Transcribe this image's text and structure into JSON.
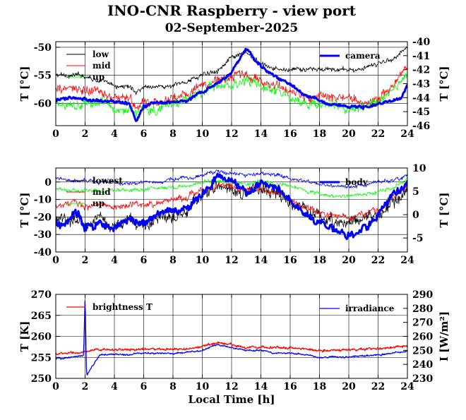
{
  "title": "INO-CNR Raspberry - view port",
  "subtitle": "02-September-2025",
  "chart_data": [
    {
      "type": "line",
      "xlim": [
        0,
        24
      ],
      "xticks": [
        "0",
        "2",
        "4",
        "6",
        "8",
        "10",
        "12",
        "14",
        "16",
        "18",
        "20",
        "22",
        "24"
      ],
      "ylabel": "T [°C]",
      "ylim": [
        -64,
        -49
      ],
      "yticks": [
        "-50",
        "-55",
        "-60"
      ],
      "y2label": "T [°C]",
      "y2lim": [
        -46,
        -40
      ],
      "y2ticks": [
        "-40",
        "-41",
        "-42",
        "-43",
        "-44",
        "-45",
        "-46"
      ],
      "grid": true,
      "legend_left": "top-left",
      "legend_right": "top-right",
      "series": [
        {
          "name": "low",
          "axis": "left",
          "color": "#000000",
          "width": 0.8,
          "noise": 0.6,
          "x": [
            0,
            1,
            2,
            3,
            4,
            5,
            5.5,
            6,
            7,
            8,
            9,
            10,
            11,
            12,
            13,
            14,
            15,
            16,
            17,
            18,
            19,
            20,
            21,
            22,
            23,
            24
          ],
          "y": [
            -55,
            -55,
            -55,
            -56,
            -57,
            -57,
            -58,
            -57,
            -57,
            -57,
            -56,
            -55,
            -54,
            -52,
            -51,
            -53,
            -54,
            -54,
            -54,
            -54,
            -54,
            -54,
            -54,
            -53,
            -52,
            -50
          ]
        },
        {
          "name": "mid",
          "axis": "left",
          "color": "#ff0000",
          "width": 0.8,
          "noise": 1.2,
          "x": [
            0,
            1,
            2,
            3,
            4,
            5,
            5.5,
            6,
            7,
            8,
            9,
            10,
            11,
            12,
            13,
            14,
            15,
            16,
            17,
            18,
            19,
            20,
            21,
            22,
            23,
            24
          ],
          "y": [
            -58,
            -57,
            -58,
            -58,
            -59,
            -59,
            -61,
            -60,
            -60,
            -59,
            -58,
            -57,
            -56,
            -55,
            -55,
            -56,
            -57,
            -58,
            -59,
            -59,
            -59,
            -59,
            -60,
            -59,
            -57,
            -53
          ]
        },
        {
          "name": "up",
          "axis": "left",
          "color": "#00ff00",
          "width": 0.8,
          "noise": 1.2,
          "x": [
            0,
            1,
            2,
            3,
            4,
            5,
            5.5,
            6,
            7,
            8,
            9,
            10,
            11,
            12,
            13,
            14,
            15,
            16,
            17,
            18,
            19,
            20,
            21,
            22,
            23,
            24
          ],
          "y": [
            -60,
            -60,
            -60,
            -60,
            -61,
            -61,
            -62,
            -61,
            -61,
            -60,
            -59,
            -58,
            -57,
            -57,
            -56,
            -57,
            -58,
            -59,
            -60,
            -60,
            -60,
            -61,
            -61,
            -60,
            -58,
            -55
          ]
        },
        {
          "name": "camera",
          "axis": "right",
          "color": "#0000ff",
          "width": 3,
          "noise": 0.15,
          "x": [
            0,
            1,
            2,
            3,
            4,
            5,
            5.5,
            6,
            7,
            8,
            9,
            10,
            11,
            12,
            13,
            13.5,
            14,
            15,
            16,
            17,
            18,
            19,
            20,
            21,
            22,
            23,
            23.6,
            24
          ],
          "y": [
            -44.2,
            -44,
            -44.1,
            -44.2,
            -44.3,
            -44.4,
            -45.7,
            -44.6,
            -44.4,
            -44.3,
            -44.2,
            -43.6,
            -43,
            -42.2,
            -40.5,
            -41.2,
            -41.8,
            -42.5,
            -43,
            -43.8,
            -44.2,
            -44.5,
            -44.6,
            -44.7,
            -44.5,
            -44.2,
            -44,
            -43.2
          ]
        }
      ]
    },
    {
      "type": "line",
      "xlim": [
        0,
        24
      ],
      "xticks": [
        "0",
        "2",
        "4",
        "6",
        "8",
        "10",
        "12",
        "14",
        "16",
        "18",
        "20",
        "22",
        "24"
      ],
      "ylabel": "T [°C]",
      "ylim": [
        -40,
        8
      ],
      "yticks": [
        "0",
        "-10",
        "-20",
        "-30",
        "-40"
      ],
      "y2label": "T [°C]",
      "y2lim": [
        -8,
        10
      ],
      "y2ticks": [
        "10",
        "5",
        "0",
        "-5"
      ],
      "grid": true,
      "legend_left": "top-left",
      "legend_right": "top-right",
      "series": [
        {
          "name": "lowest",
          "axis": "left",
          "color": "#000000",
          "width": 0.8,
          "noise": 5,
          "x": [
            0,
            1,
            2,
            3,
            4,
            5,
            6,
            7,
            8,
            9,
            10,
            11,
            12,
            13,
            14,
            15,
            16,
            17,
            18,
            19,
            20,
            21,
            22,
            23,
            24
          ],
          "y": [
            -23,
            -22,
            -24,
            -22,
            -25,
            -22,
            -24,
            -22,
            -18,
            -15,
            -8,
            -3,
            -4,
            -6,
            -4,
            -6,
            -12,
            -16,
            -20,
            -22,
            -23,
            -20,
            -20,
            -12,
            -6
          ]
        },
        {
          "name": "mid",
          "axis": "left",
          "color": "#ff0000",
          "width": 0.8,
          "noise": 2.5,
          "x": [
            0,
            1,
            2,
            3,
            4,
            5,
            6,
            7,
            8,
            9,
            10,
            11,
            12,
            13,
            14,
            15,
            16,
            17,
            18,
            19,
            20,
            21,
            22,
            23,
            24
          ],
          "y": [
            -13,
            -12,
            -14,
            -13,
            -14,
            -13,
            -13,
            -12,
            -10,
            -8,
            -5,
            -2,
            -3,
            -5,
            -4,
            -6,
            -10,
            -14,
            -18,
            -19,
            -20,
            -18,
            -16,
            -8,
            -2
          ]
        },
        {
          "name": "up",
          "axis": "left",
          "color": "#00ff00",
          "width": 0.8,
          "noise": 1.5,
          "x": [
            0,
            1,
            2,
            3,
            4,
            5,
            6,
            7,
            8,
            9,
            10,
            11,
            12,
            13,
            14,
            15,
            16,
            17,
            18,
            19,
            20,
            21,
            22,
            23,
            24
          ],
          "y": [
            -4,
            -4,
            -5,
            -5,
            -5,
            -5,
            -4,
            -4,
            -3,
            -2,
            0,
            1,
            0,
            -1,
            0,
            -1,
            -3,
            -5,
            -7,
            -8,
            -8,
            -7,
            -6,
            -3,
            2
          ]
        },
        {
          "name": "",
          "axis": "left",
          "color": "#0000ff",
          "width": 0.8,
          "noise": 1.5,
          "x": [
            0,
            1,
            2,
            3,
            4,
            5,
            6,
            7,
            8,
            9,
            10,
            11,
            12,
            13,
            14,
            15,
            16,
            17,
            18,
            19,
            20,
            21,
            22,
            23,
            24
          ],
          "y": [
            2,
            0,
            1,
            0,
            0,
            -1,
            0,
            0,
            1,
            2,
            4,
            6,
            5,
            4,
            5,
            4,
            2,
            0,
            -1,
            -2,
            -3,
            -2,
            0,
            1,
            4
          ]
        },
        {
          "name": "body",
          "axis": "right",
          "color": "#0000ff",
          "width": 3,
          "noise": 1.2,
          "x": [
            0,
            0.5,
            1,
            1.5,
            2,
            3,
            4,
            5,
            6,
            7,
            8,
            9,
            10,
            10.5,
            11,
            12,
            13,
            14,
            15,
            16,
            17,
            18,
            19,
            20,
            20.5,
            21,
            22,
            23,
            24
          ],
          "y": [
            -2,
            -3,
            -1,
            0,
            -3,
            -2,
            -3,
            -1,
            -2,
            0,
            1,
            2,
            4,
            6,
            8,
            7,
            5,
            7,
            6,
            3,
            0,
            -2,
            -3,
            -4,
            -5,
            -3,
            0,
            4,
            7
          ]
        }
      ]
    },
    {
      "type": "line",
      "xlim": [
        0,
        24
      ],
      "xticks": [
        "0",
        "2",
        "4",
        "6",
        "8",
        "10",
        "12",
        "14",
        "16",
        "18",
        "20",
        "22",
        "24"
      ],
      "xlabel": "Local Time [h]",
      "ylabel": "T [K]",
      "ylim": [
        250,
        270
      ],
      "yticks": [
        "270",
        "265",
        "260",
        "255",
        "250"
      ],
      "y2label": "I [W/m²]",
      "y2lim": [
        230,
        290
      ],
      "y2ticks": [
        "290",
        "280",
        "270",
        "260",
        "250",
        "240",
        "230"
      ],
      "grid": true,
      "legend_left": "top-left",
      "legend_right": "top-right",
      "series": [
        {
          "name": "brightness T",
          "axis": "left",
          "color": "#ff0000",
          "width": 1.3,
          "noise": 0.4,
          "x": [
            0,
            1,
            2,
            3,
            4,
            5,
            6,
            7,
            8,
            9,
            10,
            11,
            12,
            13,
            14,
            15,
            16,
            17,
            18,
            19,
            20,
            21,
            22,
            23,
            24
          ],
          "y": [
            255.8,
            256,
            256.2,
            256.8,
            256.9,
            256.8,
            257,
            256.9,
            256.8,
            257,
            257.5,
            258.6,
            258,
            257.4,
            257.5,
            257.4,
            257.2,
            257,
            256.7,
            256.7,
            256.8,
            256.9,
            257.1,
            257.4,
            257.6
          ]
        },
        {
          "name": "irradiance",
          "axis": "right",
          "color": "#0000ff",
          "width": 1.3,
          "noise": 0.8,
          "x": [
            0,
            1,
            1.9,
            2,
            2.1,
            3,
            4,
            5,
            6,
            7,
            8,
            9,
            10,
            11,
            12,
            13,
            14,
            15,
            16,
            17,
            18,
            19,
            20,
            21,
            22,
            23,
            24
          ],
          "y": [
            244,
            245,
            246,
            290,
            232,
            247,
            247,
            247,
            248,
            248,
            248,
            249,
            250,
            254,
            252,
            250,
            250,
            248,
            248,
            247,
            245,
            245,
            245,
            246,
            247,
            248,
            249
          ]
        }
      ]
    }
  ]
}
